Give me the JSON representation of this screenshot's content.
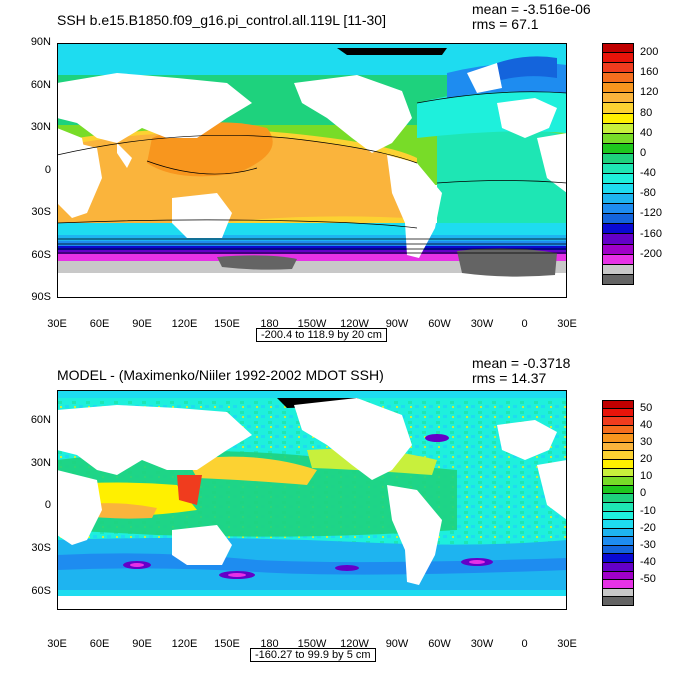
{
  "panels": [
    {
      "title": "SSH b.e15.B1850.f09_g16.pi_control.all.119L [11-30]",
      "mean_text": "mean = -3.516e-06",
      "rms_text": "rms = 67.1",
      "y_labels": [
        "90N",
        "60N",
        "30N",
        "0",
        "30S",
        "60S",
        "90S"
      ],
      "y_values": [
        90,
        60,
        30,
        0,
        -30,
        -60,
        -90
      ],
      "lat_range": [
        -90,
        90
      ],
      "x_labels": [
        "30E",
        "60E",
        "90E",
        "120E",
        "150E",
        "180",
        "150W",
        "120W",
        "90W",
        "60W",
        "30W",
        "0",
        "30E"
      ],
      "info_box": "-200.4 to 118.9 by 20 cm",
      "colorbar_labels": [
        "200",
        "160",
        "120",
        "80",
        "40",
        "0",
        "-40",
        "-80",
        "-120",
        "-160",
        "-200"
      ],
      "colorbar_colors": [
        "#c00000",
        "#e8140a",
        "#f03c1e",
        "#f56e1e",
        "#f8961e",
        "#fab43c",
        "#fcd232",
        "#fff000",
        "#c8f03c",
        "#78dc28",
        "#1ec81e",
        "#1ed27d",
        "#1ee6b4",
        "#1ef0dc",
        "#1edcf0",
        "#1eb4f0",
        "#1e8cf0",
        "#1464dc",
        "#0a0ad2",
        "#6400c8",
        "#a000c8",
        "#e632e6",
        "#c8c8c8",
        "#646464"
      ]
    },
    {
      "title": "MODEL - (Maximenko/Niiler 1992-2002 MDOT SSH)",
      "mean_text": "mean = -0.3718",
      "rms_text": "rms = 14.37",
      "y_labels": [
        "60N",
        "30N",
        "0",
        "30S",
        "60S"
      ],
      "y_values": [
        60,
        30,
        0,
        -30,
        -60
      ],
      "lat_range": [
        -73,
        82
      ],
      "x_labels": [
        "30E",
        "60E",
        "90E",
        "120E",
        "150E",
        "180",
        "150W",
        "120W",
        "90W",
        "60W",
        "30W",
        "0",
        "30E"
      ],
      "info_box": "-160.27 to 99.9 by 5 cm",
      "colorbar_labels": [
        "50",
        "40",
        "30",
        "20",
        "10",
        "0",
        "-10",
        "-20",
        "-30",
        "-40",
        "-50"
      ],
      "colorbar_colors": [
        "#c00000",
        "#e8140a",
        "#f03c1e",
        "#f56e1e",
        "#f8961e",
        "#fab43c",
        "#fcd232",
        "#fff000",
        "#c8f03c",
        "#78dc28",
        "#1ec81e",
        "#1ed27d",
        "#1ee6b4",
        "#1ef0dc",
        "#1edcf0",
        "#1eb4f0",
        "#1e8cf0",
        "#1464dc",
        "#0a0ad2",
        "#6400c8",
        "#a000c8",
        "#e632e6",
        "#c8c8c8",
        "#646464"
      ]
    }
  ]
}
